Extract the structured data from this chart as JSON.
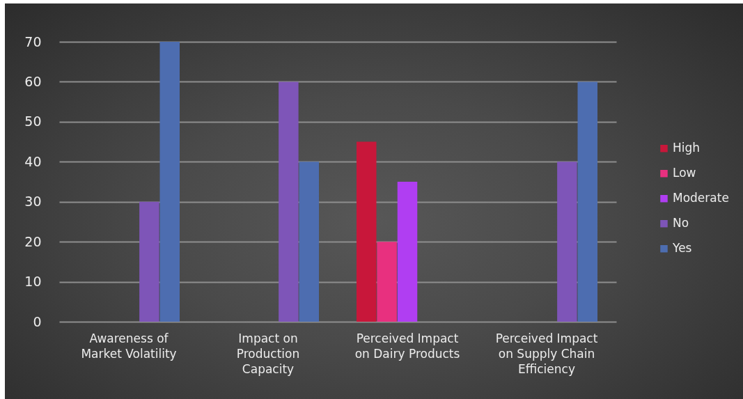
{
  "chart_data": {
    "type": "bar",
    "categories": [
      "Awareness of Market Volatility",
      "Impact on Production Capacity",
      "Perceived Impact on Dairy Products",
      "Perceived Impact on Supply Chain Efficiency"
    ],
    "series": [
      {
        "name": "High",
        "color": "#c8173a",
        "values": [
          null,
          null,
          45,
          null
        ]
      },
      {
        "name": "Low",
        "color": "#e8307f",
        "values": [
          null,
          null,
          20,
          null
        ]
      },
      {
        "name": "Moderate",
        "color": "#b03ef2",
        "values": [
          null,
          null,
          35,
          null
        ]
      },
      {
        "name": "No",
        "color": "#7e55b8",
        "values": [
          30,
          60,
          null,
          40
        ]
      },
      {
        "name": "Yes",
        "color": "#4d6db0",
        "values": [
          70,
          40,
          null,
          60
        ]
      }
    ],
    "ylim": [
      0,
      70
    ],
    "yticks": [
      0,
      10,
      20,
      30,
      40,
      50,
      60,
      70
    ],
    "grid": "y",
    "legend": "right"
  }
}
